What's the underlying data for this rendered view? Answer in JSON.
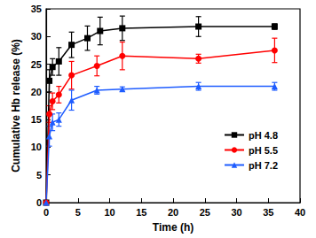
{
  "chart_data": {
    "type": "line",
    "x_label": "Time (h)",
    "y_label": "Cumulative Hb release (%)",
    "xlim": [
      0,
      40
    ],
    "xticks": [
      0,
      5,
      10,
      15,
      20,
      25,
      30,
      35,
      40
    ],
    "ylim": [
      0,
      35
    ],
    "yticks": [
      0,
      5,
      10,
      15,
      20,
      25,
      30,
      35
    ],
    "grid": false,
    "legend": "right",
    "series": [
      {
        "name": "pH 4.8",
        "color": "#000000",
        "marker": "square",
        "x": [
          0,
          0.5,
          1,
          2,
          4,
          6.5,
          8.5,
          12,
          24,
          36
        ],
        "values": [
          0,
          22,
          24.5,
          25.5,
          28.5,
          29.7,
          31,
          31.5,
          31.8,
          31.8
        ],
        "errors": [
          0,
          2,
          1.5,
          2.5,
          2.3,
          2.2,
          2.5,
          2.2,
          1.8,
          0.5
        ]
      },
      {
        "name": "pH 5.5",
        "color": "#ff0000",
        "marker": "circle",
        "x": [
          0,
          0.5,
          1,
          2,
          4,
          8,
          12,
          24,
          36
        ],
        "values": [
          0,
          16,
          18.3,
          19.5,
          23,
          24.7,
          26.5,
          26,
          27.5
        ],
        "errors": [
          0,
          1.5,
          1.5,
          1.5,
          2.5,
          1.8,
          2.5,
          0.8,
          2.2
        ]
      },
      {
        "name": "pH 7.2",
        "color": "#1e5cff",
        "marker": "triangle",
        "x": [
          0,
          0.5,
          1,
          2,
          4,
          8,
          12,
          24,
          36
        ],
        "values": [
          0,
          12,
          14.5,
          15,
          18.5,
          20.3,
          20.5,
          21,
          21
        ],
        "errors": [
          0,
          1.8,
          1.5,
          1.2,
          1.8,
          0.7,
          0.4,
          0.7,
          0.7
        ]
      }
    ]
  }
}
